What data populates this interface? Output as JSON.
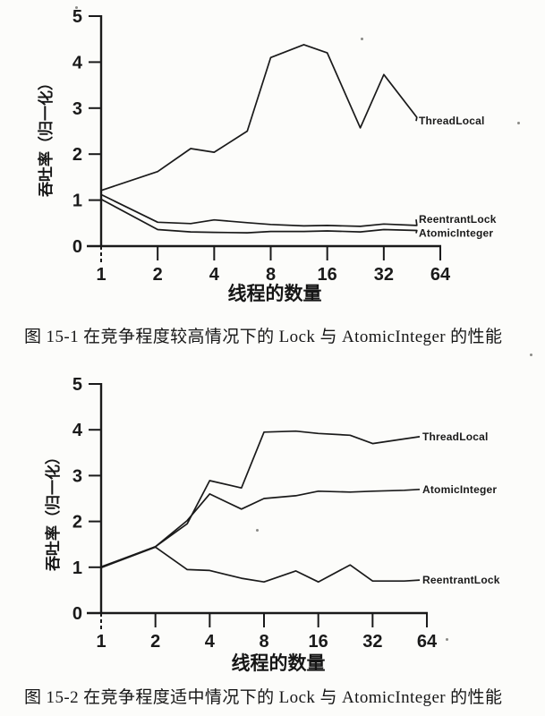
{
  "colors": {
    "ink": "#1a1a1a",
    "paper": "#fcfcfa"
  },
  "figures": [
    {
      "caption": "图 15-1  在竞争程度较高情况下的 Lock 与 AtomicInteger 的性能"
    },
    {
      "caption": "图 15-2  在竞争程度适中情况下的 Lock 与 AtomicInteger 的性能"
    }
  ],
  "chart_data": [
    {
      "type": "line",
      "title": "在竞争程度较高情况下的 Lock 与 AtomicInteger 的性能",
      "xlabel": "线程的数量",
      "ylabel": "吞吐率（归一化）",
      "x_scale": "log2",
      "xlim": [
        1,
        64
      ],
      "ylim": [
        0,
        5
      ],
      "x_ticks": [
        1,
        2,
        4,
        8,
        16,
        32,
        64
      ],
      "y_ticks": [
        0,
        1,
        2,
        3,
        4,
        5
      ],
      "grid": false,
      "legend_position": "line-end-labels",
      "x": [
        1,
        2,
        3,
        4,
        6,
        8,
        12,
        16,
        24,
        32,
        48
      ],
      "series": [
        {
          "name": "ThreadLocal",
          "values": [
            1.21,
            1.62,
            2.12,
            2.04,
            2.5,
            4.1,
            4.38,
            4.2,
            2.57,
            3.73,
            2.8
          ]
        },
        {
          "name": "ReentrantLock",
          "values": [
            1.12,
            0.52,
            0.49,
            0.57,
            0.51,
            0.47,
            0.44,
            0.45,
            0.43,
            0.48,
            0.45
          ]
        },
        {
          "name": "AtomicInteger",
          "values": [
            1.02,
            0.36,
            0.31,
            0.3,
            0.29,
            0.32,
            0.32,
            0.33,
            0.31,
            0.36,
            0.34
          ]
        }
      ]
    },
    {
      "type": "line",
      "title": "在竞争程度适中情况下的 Lock 与 AtomicInteger 的性能",
      "xlabel": "线程的数量",
      "ylabel": "吞吐率（归一化）",
      "x_scale": "log2",
      "xlim": [
        1,
        64
      ],
      "ylim": [
        0,
        5
      ],
      "x_ticks": [
        1,
        2,
        4,
        8,
        16,
        32,
        64
      ],
      "y_ticks": [
        0,
        1,
        2,
        3,
        4,
        5
      ],
      "grid": false,
      "legend_position": "line-end-labels",
      "x": [
        1,
        2,
        3,
        4,
        6,
        8,
        12,
        16,
        24,
        32,
        48
      ],
      "series": [
        {
          "name": "ThreadLocal",
          "values": [
            1.0,
            1.45,
            1.95,
            2.89,
            2.73,
            3.95,
            3.97,
            3.92,
            3.88,
            3.7,
            3.8
          ]
        },
        {
          "name": "AtomicInteger",
          "values": [
            1.01,
            1.45,
            2.02,
            2.6,
            2.27,
            2.5,
            2.56,
            2.66,
            2.64,
            2.66,
            2.68
          ]
        },
        {
          "name": "ReentrantLock",
          "values": [
            0.99,
            1.44,
            0.95,
            0.93,
            0.76,
            0.68,
            0.92,
            0.68,
            1.05,
            0.7,
            0.7
          ]
        }
      ]
    }
  ]
}
